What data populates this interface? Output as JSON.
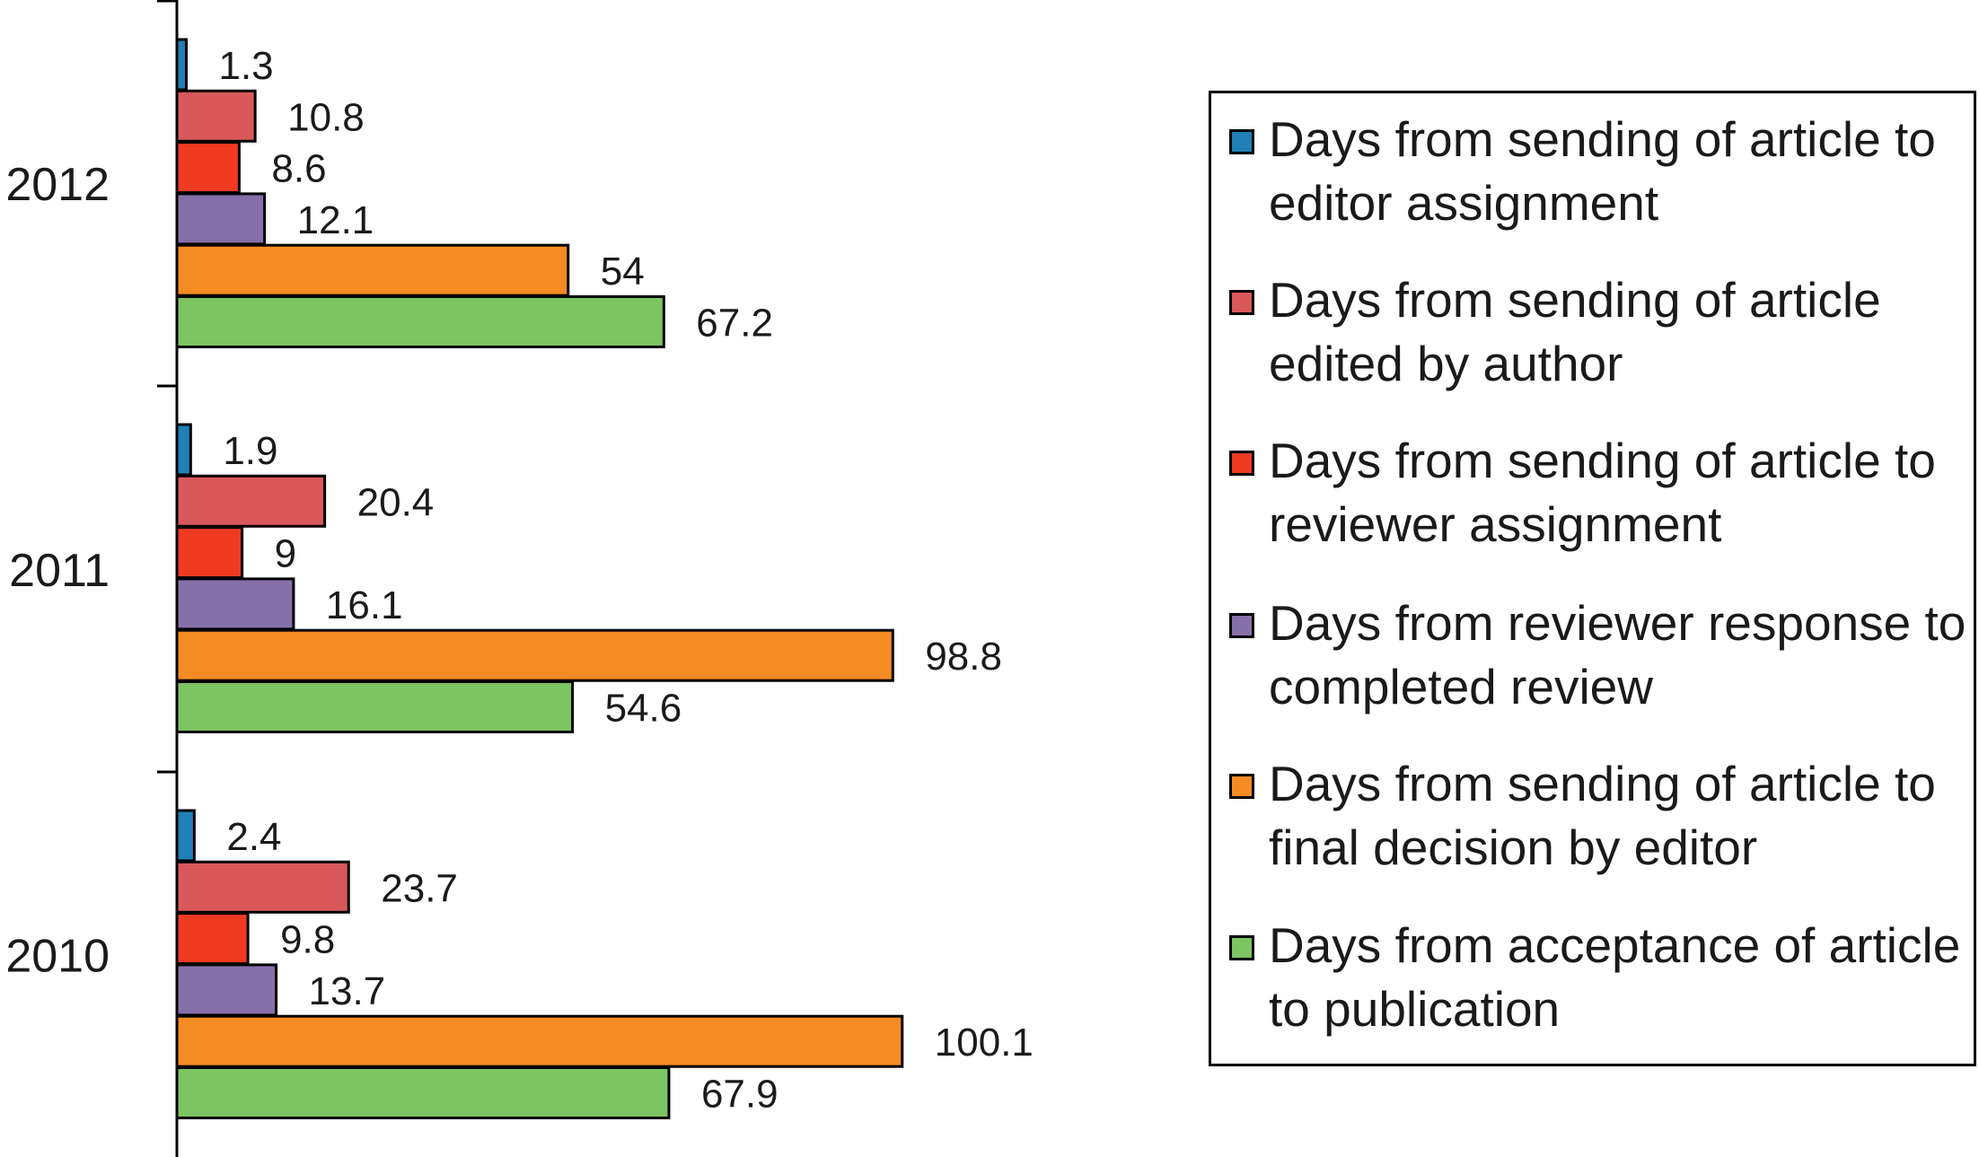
{
  "chart_data": {
    "type": "bar",
    "orientation": "horizontal",
    "categories": [
      "2012",
      "2011",
      "2010"
    ],
    "series": [
      {
        "name": "Days from sending of article to editor assignment",
        "color": "#1f7fb6",
        "values": [
          1.3,
          1.9,
          2.4
        ]
      },
      {
        "name": "Days from sending of article edited by author",
        "color": "#d9585a",
        "values": [
          10.8,
          20.4,
          23.7
        ]
      },
      {
        "name": "Days from sending of article to reviewer assignment",
        "color": "#ee3b22",
        "values": [
          8.6,
          9,
          9.8
        ]
      },
      {
        "name": "Days from reviewer response to completed review",
        "color": "#8670a9",
        "values": [
          12.1,
          16.1,
          13.7
        ]
      },
      {
        "name": "Days from sending of article to final decision by editor",
        "color": "#f58b23",
        "values": [
          54,
          98.8,
          100.1
        ]
      },
      {
        "name": "Days from acceptance of article to publication",
        "color": "#7dc462",
        "values": [
          67.2,
          54.6,
          67.9
        ]
      }
    ],
    "data_labels": [
      [
        "1.3",
        "10.8",
        "8.6",
        "12.1",
        "54",
        "67.2"
      ],
      [
        "1.9",
        "20.4",
        "9",
        "16.1",
        "98.8",
        "54.6"
      ],
      [
        "2.4",
        "23.7",
        "9.8",
        "13.7",
        "100.1",
        "67.9"
      ]
    ],
    "xlim": [
      0,
      120
    ],
    "title": "",
    "xlabel": "",
    "ylabel": "",
    "grid": false,
    "legend": "right"
  }
}
